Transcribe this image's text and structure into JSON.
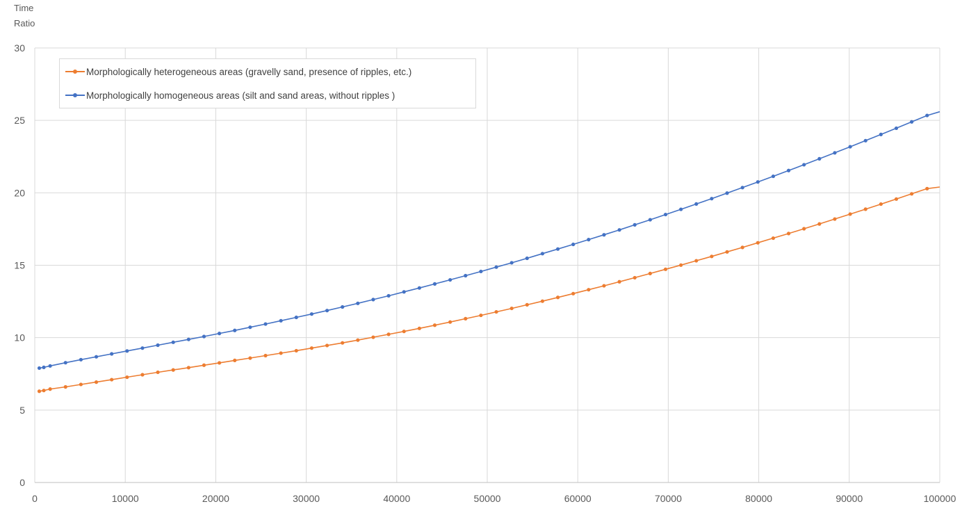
{
  "chart_data": {
    "type": "line",
    "ylabel_line1": "Time",
    "ylabel_line2": "Ratio",
    "xlim": [
      0,
      100000
    ],
    "ylim": [
      0,
      30
    ],
    "x_ticks": [
      0,
      10000,
      20000,
      30000,
      40000,
      50000,
      60000,
      70000,
      80000,
      90000,
      100000
    ],
    "y_ticks": [
      0,
      5,
      10,
      15,
      20,
      25,
      30
    ],
    "grid": true,
    "legend_position": "top-left",
    "series": [
      {
        "name": "Morphologically heterogeneous areas (gravelly sand, presence of ripples, etc.)",
        "color": "#ED7D31",
        "x": [
          500,
          1000,
          1700,
          3400,
          5100,
          6800,
          8500,
          10200,
          11900,
          13600,
          15300,
          17000,
          18700,
          20400,
          22100,
          23800,
          25500,
          27200,
          28900,
          30600,
          32300,
          34000,
          35700,
          37400,
          39100,
          40800,
          42500,
          44200,
          45900,
          47600,
          49300,
          51000,
          52700,
          54400,
          56100,
          57800,
          59500,
          61200,
          62900,
          64600,
          66300,
          68000,
          69700,
          71400,
          73100,
          74800,
          76500,
          78200,
          79900,
          81600,
          83300,
          85000,
          86700,
          88400,
          90100,
          91800,
          93500,
          95200,
          96900,
          98600,
          100000
        ],
        "values": [
          6.3,
          6.35,
          6.45,
          6.6,
          6.77,
          6.93,
          7.1,
          7.27,
          7.44,
          7.61,
          7.77,
          7.93,
          8.1,
          8.26,
          8.43,
          8.59,
          8.76,
          8.93,
          9.1,
          9.28,
          9.46,
          9.64,
          9.83,
          10.03,
          10.23,
          10.43,
          10.64,
          10.86,
          11.08,
          11.31,
          11.54,
          11.78,
          12.02,
          12.27,
          12.52,
          12.78,
          13.04,
          13.31,
          13.58,
          13.86,
          14.14,
          14.43,
          14.72,
          15.01,
          15.31,
          15.61,
          15.92,
          16.23,
          16.55,
          16.87,
          17.19,
          17.52,
          17.85,
          18.19,
          18.53,
          18.87,
          19.22,
          19.57,
          19.93,
          20.29,
          20.4
        ]
      },
      {
        "name": "Morphologically homogeneous areas (silt and sand areas, without ripples )",
        "color": "#4472C4",
        "x": [
          500,
          1000,
          1700,
          3400,
          5100,
          6800,
          8500,
          10200,
          11900,
          13600,
          15300,
          17000,
          18700,
          20400,
          22100,
          23800,
          25500,
          27200,
          28900,
          30600,
          32300,
          34000,
          35700,
          37400,
          39100,
          40800,
          42500,
          44200,
          45900,
          47600,
          49300,
          51000,
          52700,
          54400,
          56100,
          57800,
          59500,
          61200,
          62900,
          64600,
          66300,
          68000,
          69700,
          71400,
          73100,
          74800,
          76500,
          78200,
          79900,
          81600,
          83300,
          85000,
          86700,
          88400,
          90100,
          91800,
          93500,
          95200,
          96900,
          98600,
          100000
        ],
        "values": [
          7.9,
          7.95,
          8.05,
          8.27,
          8.48,
          8.68,
          8.88,
          9.08,
          9.28,
          9.48,
          9.68,
          9.88,
          10.08,
          10.29,
          10.5,
          10.72,
          10.94,
          11.17,
          11.4,
          11.63,
          11.87,
          12.12,
          12.37,
          12.63,
          12.89,
          13.16,
          13.43,
          13.71,
          13.99,
          14.28,
          14.57,
          14.87,
          15.17,
          15.48,
          15.8,
          16.12,
          16.44,
          16.77,
          17.1,
          17.44,
          17.79,
          18.14,
          18.5,
          18.86,
          19.23,
          19.6,
          19.98,
          20.36,
          20.75,
          21.14,
          21.54,
          21.94,
          22.35,
          22.76,
          23.18,
          23.6,
          24.03,
          24.46,
          24.9,
          25.34,
          25.6
        ]
      }
    ]
  }
}
